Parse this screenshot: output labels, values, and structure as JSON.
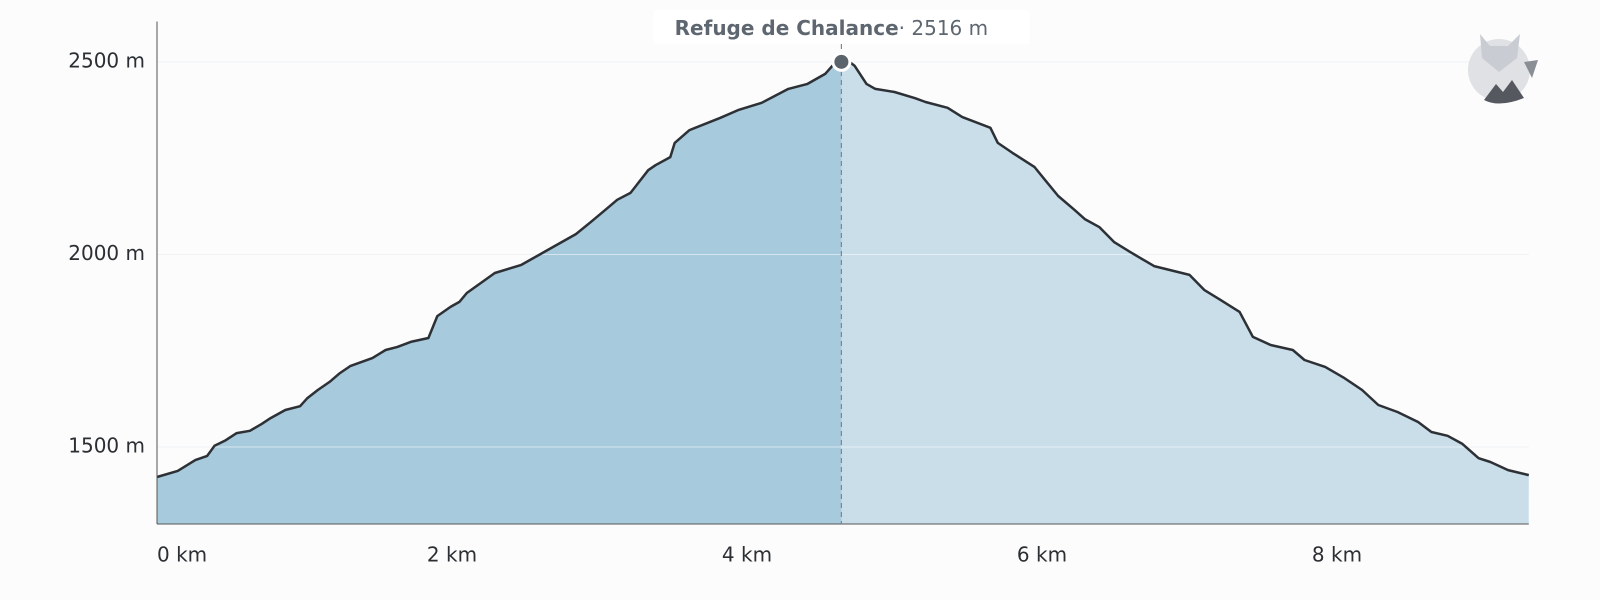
{
  "chart_data": {
    "type": "area",
    "x": [
      0,
      0.14,
      0.26,
      0.34,
      0.39,
      0.46,
      0.54,
      0.63,
      0.71,
      0.77,
      0.87,
      0.97,
      1.02,
      1.09,
      1.17,
      1.24,
      1.31,
      1.46,
      1.55,
      1.63,
      1.72,
      1.84,
      1.9,
      1.99,
      2.05,
      2.1,
      2.29,
      2.47,
      2.65,
      2.84,
      2.94,
      3.04,
      3.12,
      3.21,
      3.33,
      3.38,
      3.48,
      3.51,
      3.61,
      3.82,
      3.94,
      4.1,
      4.28,
      4.41,
      4.53,
      4.59,
      4.64,
      4.73,
      4.81,
      4.87,
      5.0,
      5.14,
      5.21,
      5.36,
      5.46,
      5.65,
      5.7,
      5.8,
      5.95,
      6.02,
      6.11,
      6.22,
      6.29,
      6.39,
      6.49,
      6.6,
      6.76,
      7.0,
      7.1,
      7.21,
      7.34,
      7.43,
      7.55,
      7.7,
      7.78,
      7.92,
      8.05,
      8.17,
      8.28,
      8.41,
      8.55,
      8.64,
      8.75,
      8.85,
      8.96,
      9.04,
      9.16,
      9.3
    ],
    "values": [
      1422,
      1438,
      1466,
      1477,
      1503,
      1516,
      1536,
      1542,
      1560,
      1575,
      1596,
      1606,
      1627,
      1648,
      1669,
      1692,
      1710,
      1731,
      1752,
      1760,
      1773,
      1783,
      1840,
      1864,
      1877,
      1900,
      1952,
      1973,
      2012,
      2053,
      2084,
      2116,
      2142,
      2160,
      2219,
      2232,
      2253,
      2290,
      2323,
      2355,
      2375,
      2394,
      2430,
      2443,
      2469,
      2495,
      2516,
      2490,
      2443,
      2430,
      2422,
      2406,
      2396,
      2381,
      2357,
      2329,
      2290,
      2264,
      2227,
      2194,
      2152,
      2116,
      2092,
      2071,
      2032,
      2006,
      1970,
      1947,
      1908,
      1882,
      1851,
      1786,
      1765,
      1752,
      1726,
      1708,
      1679,
      1648,
      1609,
      1591,
      1565,
      1539,
      1529,
      1508,
      1471,
      1461,
      1440,
      1427
    ],
    "color": "#cadeea",
    "progress_color": "#a8cadd",
    "line_color": "#2d3136",
    "xlim": [
      0,
      9.3
    ],
    "ylim": [
      1300,
      2600
    ],
    "xticks": [
      {
        "value": 0,
        "label": "0 km"
      },
      {
        "value": 2,
        "label": "2 km"
      },
      {
        "value": 4,
        "label": "4 km"
      },
      {
        "value": 6,
        "label": "6 km"
      },
      {
        "value": 8,
        "label": "8 km"
      }
    ],
    "yticks": [
      {
        "value": 1500,
        "label": "1500 m"
      },
      {
        "value": 2000,
        "label": "2000 m"
      },
      {
        "value": 2500,
        "label": "2500 m"
      }
    ],
    "grid": true,
    "annotation": {
      "label": "Refuge de Chalance",
      "x": 4.64,
      "value": 2516,
      "value_label": "· 2516 m"
    }
  }
}
